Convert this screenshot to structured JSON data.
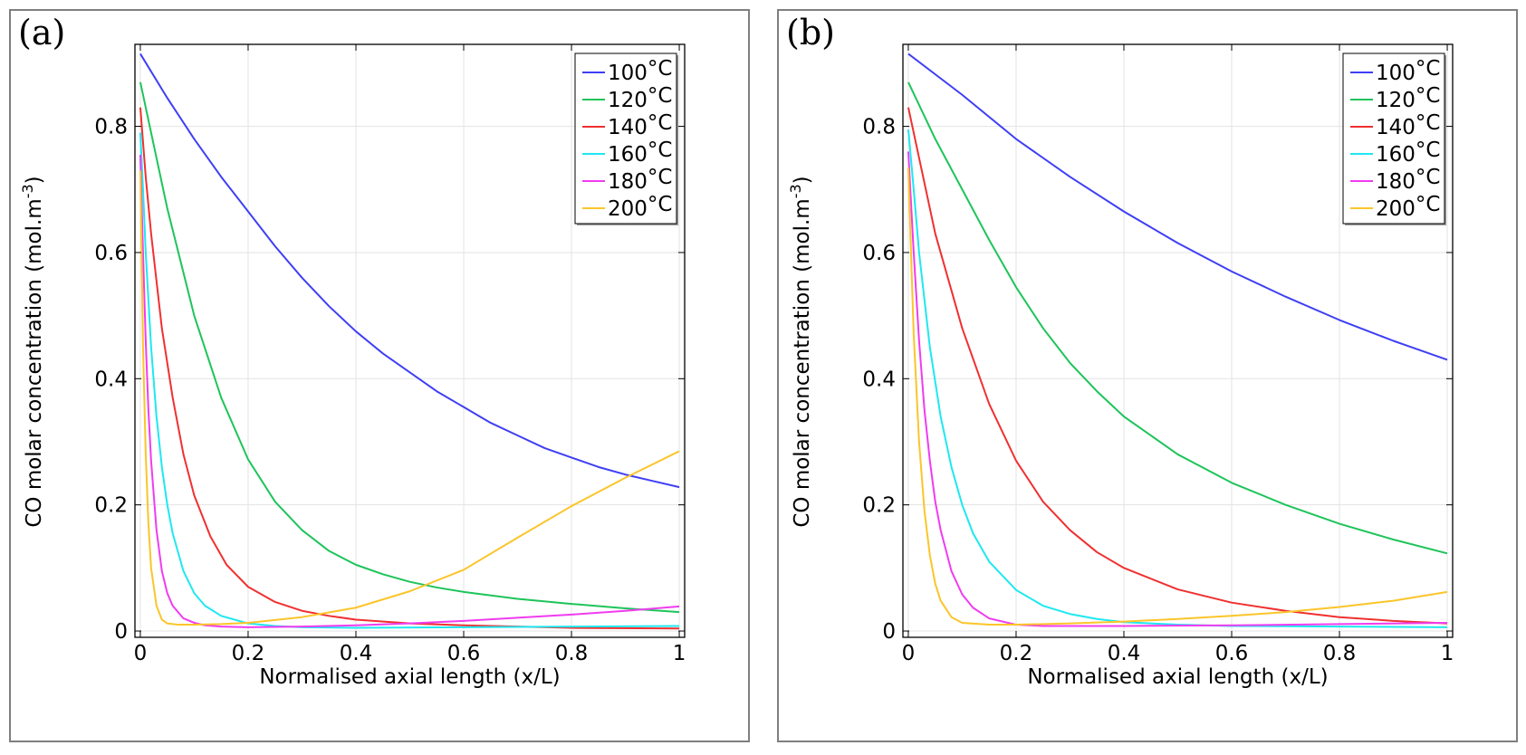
{
  "chart_data": [
    {
      "id": "a",
      "panel_label": "(a)",
      "type": "line",
      "xlabel": "Normalised axial length (x/L)",
      "ylabel_main": "CO molar concentration (mol.m",
      "ylabel_sup": "-3",
      "ylabel_end": ")",
      "xlim": [
        -0.01,
        1.01
      ],
      "ylim": [
        -0.01,
        0.93
      ],
      "xticks": [
        0,
        0.2,
        0.4,
        0.6,
        0.8,
        1
      ],
      "xtick_labels": [
        "0",
        "0.2",
        "0.4",
        "0.6",
        "0.8",
        "1"
      ],
      "yticks": [
        0,
        0.2,
        0.4,
        0.6,
        0.8
      ],
      "ytick_labels": [
        "0",
        "0.2",
        "0.4",
        "0.6",
        "0.8"
      ],
      "grid": true,
      "legend_position": "top-right",
      "series": [
        {
          "name": "100",
          "unit": "°C",
          "color": "#3f3ff5",
          "x": [
            0,
            0.05,
            0.1,
            0.15,
            0.2,
            0.25,
            0.3,
            0.35,
            0.4,
            0.45,
            0.5,
            0.55,
            0.6,
            0.65,
            0.7,
            0.75,
            0.8,
            0.85,
            0.9,
            0.95,
            1
          ],
          "y": [
            0.915,
            0.845,
            0.78,
            0.72,
            0.665,
            0.61,
            0.56,
            0.515,
            0.475,
            0.44,
            0.41,
            0.38,
            0.355,
            0.33,
            0.31,
            0.29,
            0.275,
            0.26,
            0.248,
            0.238,
            0.228
          ]
        },
        {
          "name": "120",
          "unit": "°C",
          "color": "#1ec45a",
          "x": [
            0,
            0.02,
            0.05,
            0.1,
            0.15,
            0.2,
            0.25,
            0.3,
            0.35,
            0.4,
            0.45,
            0.5,
            0.55,
            0.6,
            0.7,
            0.8,
            0.9,
            1
          ],
          "y": [
            0.87,
            0.79,
            0.67,
            0.5,
            0.37,
            0.272,
            0.205,
            0.16,
            0.127,
            0.105,
            0.09,
            0.078,
            0.069,
            0.062,
            0.051,
            0.043,
            0.036,
            0.03
          ]
        },
        {
          "name": "140",
          "unit": "°C",
          "color": "#f03030",
          "x": [
            0,
            0.01,
            0.02,
            0.04,
            0.06,
            0.08,
            0.1,
            0.13,
            0.16,
            0.2,
            0.25,
            0.3,
            0.35,
            0.4,
            0.5,
            0.6,
            0.8,
            1
          ],
          "y": [
            0.83,
            0.72,
            0.63,
            0.48,
            0.37,
            0.28,
            0.215,
            0.15,
            0.105,
            0.07,
            0.046,
            0.032,
            0.024,
            0.018,
            0.012,
            0.009,
            0.005,
            0.004
          ]
        },
        {
          "name": "160",
          "unit": "°C",
          "color": "#1ee8f0",
          "x": [
            0,
            0.005,
            0.01,
            0.02,
            0.03,
            0.04,
            0.05,
            0.06,
            0.08,
            0.1,
            0.12,
            0.15,
            0.2,
            0.25,
            0.3,
            0.4,
            0.6,
            0.8,
            1
          ],
          "y": [
            0.79,
            0.7,
            0.6,
            0.45,
            0.34,
            0.26,
            0.2,
            0.155,
            0.095,
            0.06,
            0.04,
            0.024,
            0.012,
            0.008,
            0.006,
            0.005,
            0.006,
            0.007,
            0.008
          ]
        },
        {
          "name": "180",
          "unit": "°C",
          "color": "#f03cf0",
          "x": [
            0,
            0.005,
            0.01,
            0.015,
            0.02,
            0.03,
            0.04,
            0.05,
            0.06,
            0.08,
            0.1,
            0.12,
            0.15,
            0.2,
            0.3,
            0.4,
            0.5,
            0.6,
            0.7,
            0.8,
            0.9,
            1
          ],
          "y": [
            0.755,
            0.6,
            0.46,
            0.35,
            0.27,
            0.16,
            0.095,
            0.06,
            0.04,
            0.02,
            0.013,
            0.009,
            0.007,
            0.006,
            0.007,
            0.009,
            0.012,
            0.016,
            0.021,
            0.026,
            0.032,
            0.039
          ]
        },
        {
          "name": "200",
          "unit": "°C",
          "color": "#fbc52a",
          "x": [
            0,
            0.005,
            0.01,
            0.015,
            0.02,
            0.03,
            0.04,
            0.05,
            0.07,
            0.1,
            0.15,
            0.2,
            0.3,
            0.4,
            0.5,
            0.6,
            0.7,
            0.8,
            0.9,
            1
          ],
          "y": [
            0.73,
            0.45,
            0.28,
            0.17,
            0.1,
            0.04,
            0.018,
            0.012,
            0.01,
            0.01,
            0.011,
            0.013,
            0.022,
            0.037,
            0.063,
            0.097,
            0.148,
            0.198,
            0.243,
            0.285
          ]
        }
      ]
    },
    {
      "id": "b",
      "panel_label": "(b)",
      "type": "line",
      "xlabel": "Normalised axial length (x/L)",
      "ylabel_main": "CO molar concentration (mol.m",
      "ylabel_sup": "-3",
      "ylabel_end": ")",
      "xlim": [
        -0.01,
        1.01
      ],
      "ylim": [
        -0.01,
        0.93
      ],
      "xticks": [
        0,
        0.2,
        0.4,
        0.6,
        0.8,
        1
      ],
      "xtick_labels": [
        "0",
        "0.2",
        "0.4",
        "0.6",
        "0.8",
        "1"
      ],
      "yticks": [
        0,
        0.2,
        0.4,
        0.6,
        0.8
      ],
      "ytick_labels": [
        "0",
        "0.2",
        "0.4",
        "0.6",
        "0.8"
      ],
      "grid": true,
      "legend_position": "top-right",
      "series": [
        {
          "name": "100",
          "unit": "°C",
          "color": "#3f3ff5",
          "x": [
            0,
            0.1,
            0.2,
            0.3,
            0.4,
            0.5,
            0.6,
            0.7,
            0.8,
            0.9,
            1
          ],
          "y": [
            0.915,
            0.85,
            0.78,
            0.72,
            0.665,
            0.615,
            0.57,
            0.53,
            0.493,
            0.46,
            0.43
          ]
        },
        {
          "name": "120",
          "unit": "°C",
          "color": "#1ec45a",
          "x": [
            0,
            0.05,
            0.1,
            0.15,
            0.2,
            0.25,
            0.3,
            0.35,
            0.4,
            0.5,
            0.6,
            0.7,
            0.8,
            0.9,
            1
          ],
          "y": [
            0.87,
            0.78,
            0.7,
            0.62,
            0.545,
            0.48,
            0.425,
            0.38,
            0.34,
            0.28,
            0.235,
            0.2,
            0.17,
            0.145,
            0.123
          ]
        },
        {
          "name": "140",
          "unit": "°C",
          "color": "#f03030",
          "x": [
            0,
            0.02,
            0.05,
            0.1,
            0.15,
            0.2,
            0.25,
            0.3,
            0.35,
            0.4,
            0.5,
            0.6,
            0.7,
            0.8,
            0.9,
            1
          ],
          "y": [
            0.83,
            0.75,
            0.63,
            0.48,
            0.36,
            0.27,
            0.205,
            0.16,
            0.125,
            0.1,
            0.066,
            0.045,
            0.032,
            0.022,
            0.016,
            0.012
          ]
        },
        {
          "name": "160",
          "unit": "°C",
          "color": "#1ee8f0",
          "x": [
            0,
            0.01,
            0.02,
            0.04,
            0.06,
            0.08,
            0.1,
            0.12,
            0.15,
            0.2,
            0.25,
            0.3,
            0.35,
            0.4,
            0.5,
            0.6,
            0.8,
            1
          ],
          "y": [
            0.795,
            0.7,
            0.6,
            0.45,
            0.34,
            0.26,
            0.2,
            0.155,
            0.11,
            0.065,
            0.04,
            0.027,
            0.019,
            0.014,
            0.01,
            0.008,
            0.007,
            0.006
          ]
        },
        {
          "name": "180",
          "unit": "°C",
          "color": "#f03cf0",
          "x": [
            0,
            0.01,
            0.02,
            0.03,
            0.04,
            0.05,
            0.06,
            0.08,
            0.1,
            0.12,
            0.15,
            0.2,
            0.25,
            0.3,
            0.4,
            0.6,
            0.8,
            1
          ],
          "y": [
            0.76,
            0.6,
            0.46,
            0.35,
            0.27,
            0.205,
            0.16,
            0.095,
            0.058,
            0.037,
            0.02,
            0.01,
            0.008,
            0.008,
            0.008,
            0.009,
            0.011,
            0.013
          ]
        },
        {
          "name": "200",
          "unit": "°C",
          "color": "#fbc52a",
          "x": [
            0,
            0.005,
            0.01,
            0.02,
            0.03,
            0.04,
            0.05,
            0.06,
            0.08,
            0.1,
            0.15,
            0.2,
            0.3,
            0.4,
            0.5,
            0.6,
            0.7,
            0.8,
            0.9,
            1
          ],
          "y": [
            0.735,
            0.6,
            0.47,
            0.3,
            0.19,
            0.12,
            0.075,
            0.048,
            0.022,
            0.013,
            0.01,
            0.01,
            0.012,
            0.015,
            0.019,
            0.024,
            0.03,
            0.038,
            0.048,
            0.062
          ]
        }
      ]
    }
  ]
}
